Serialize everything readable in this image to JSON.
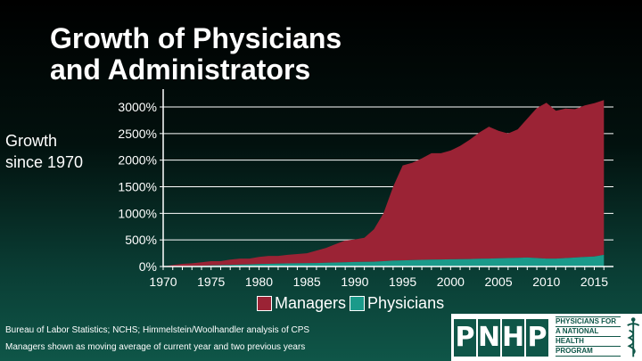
{
  "title_lines": [
    "Growth of Physicians",
    "and Administrators"
  ],
  "side_label_lines": [
    "Growth",
    "since 1970"
  ],
  "sources": [
    "Bureau of Labor Statistics; NCHS; Himmelstein/Woolhandler analysis of CPS",
    "Managers shown as moving average of current year and two previous years"
  ],
  "logo": {
    "letters": [
      "P",
      "N",
      "H",
      "P"
    ],
    "text_lines": [
      "PHYSICIANS FOR",
      "A NATIONAL",
      "HEALTH",
      "PROGRAM"
    ],
    "mark_icon": "caduceus-icon"
  },
  "colors": {
    "managers": "#9b2335",
    "physicians": "#1a9a8a",
    "grid": "#ffffff",
    "logo_green": "#0f5648"
  },
  "chart_data": {
    "type": "area",
    "stacked": true,
    "x": [
      1970,
      1971,
      1972,
      1973,
      1974,
      1975,
      1976,
      1977,
      1978,
      1979,
      1980,
      1981,
      1982,
      1983,
      1984,
      1985,
      1986,
      1987,
      1988,
      1989,
      1990,
      1991,
      1992,
      1993,
      1994,
      1995,
      1996,
      1997,
      1998,
      1999,
      2000,
      2001,
      2002,
      2003,
      2004,
      2005,
      2006,
      2007,
      2008,
      2009,
      2010,
      2011,
      2012,
      2013,
      2014,
      2015,
      2016
    ],
    "series": [
      {
        "name": "Physicians",
        "values": [
          0,
          3,
          6,
          10,
          15,
          20,
          25,
          30,
          35,
          40,
          45,
          50,
          55,
          58,
          60,
          62,
          65,
          70,
          75,
          80,
          85,
          88,
          90,
          100,
          110,
          115,
          120,
          125,
          130,
          132,
          135,
          138,
          140,
          145,
          150,
          155,
          160,
          165,
          170,
          160,
          150,
          150,
          160,
          170,
          180,
          190,
          220
        ]
      },
      {
        "name": "Managers",
        "values": [
          0,
          27,
          44,
          50,
          65,
          80,
          75,
          100,
          115,
          110,
          135,
          150,
          145,
          162,
          175,
          188,
          235,
          280,
          345,
          410,
          425,
          452,
          610,
          900,
          1390,
          1785,
          1830,
          1910,
          2000,
          1998,
          2045,
          2132,
          2245,
          2375,
          2480,
          2395,
          2340,
          2415,
          2610,
          2820,
          2930,
          2780,
          2810,
          2790,
          2850,
          2880,
          2910
        ]
      }
    ],
    "xticks": [
      1970,
      1975,
      1980,
      1985,
      1990,
      1995,
      2000,
      2005,
      2010,
      2015
    ],
    "yticks": [
      0,
      500,
      1000,
      1500,
      2000,
      2500,
      3000
    ],
    "ytick_labels": [
      "0%",
      "500%",
      "1000%",
      "1500%",
      "2000%",
      "2500%",
      "3000%"
    ],
    "xlim": [
      1970,
      2017
    ],
    "ylim": [
      0,
      3200
    ],
    "legend": [
      "Managers",
      "Physicians"
    ],
    "legend_position": "bottom",
    "grid": "horizontal"
  }
}
